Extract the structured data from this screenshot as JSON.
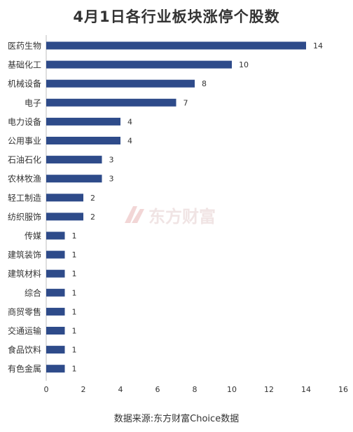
{
  "chart_data": {
    "type": "bar",
    "orientation": "horizontal",
    "title": "4月1日各行业板块涨停个股数",
    "source": "数据来源:东方财富Choice数据",
    "watermark": "东方财富",
    "categories": [
      "医药生物",
      "基础化工",
      "机械设备",
      "电子",
      "电力设备",
      "公用事业",
      "石油石化",
      "农林牧渔",
      "轻工制造",
      "纺织服饰",
      "传媒",
      "建筑装饰",
      "建筑材料",
      "综合",
      "商贸零售",
      "交通运输",
      "食品饮料",
      "有色金属"
    ],
    "values": [
      14,
      10,
      8,
      7,
      4,
      4,
      3,
      3,
      2,
      2,
      1,
      1,
      1,
      1,
      1,
      1,
      1,
      1
    ],
    "xlim": [
      0,
      16
    ],
    "xticks": [
      0,
      2,
      4,
      6,
      8,
      10,
      12,
      14,
      16
    ],
    "bar_color": "#2e4b8a",
    "grid": false,
    "data_labels": true
  }
}
